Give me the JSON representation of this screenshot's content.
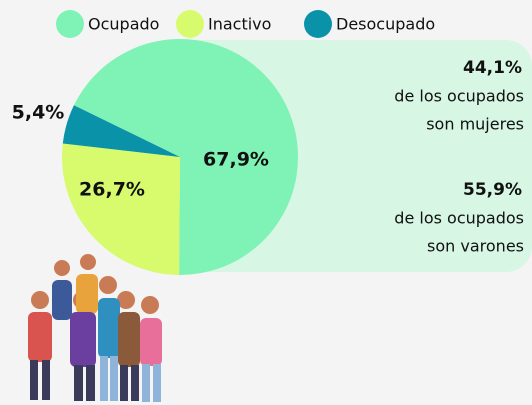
{
  "chart_data": {
    "type": "pie",
    "categories": [
      "Ocupado",
      "Inactivo",
      "Desocupado"
    ],
    "values": [
      67.9,
      26.7,
      5.4
    ],
    "value_labels": [
      "67,9%",
      "26,7%",
      "5,4%"
    ],
    "colors": [
      "#7ff2b5",
      "#d8fb6d",
      "#0a92a8"
    ],
    "legend": "top",
    "annotations": [
      {
        "value": 44.1,
        "label": "44,1%",
        "lines": [
          "de los ocupados",
          "son mujeres"
        ]
      },
      {
        "value": 55.9,
        "label": "55,9%",
        "lines": [
          "de los ocupados",
          "son varones"
        ]
      }
    ]
  }
}
